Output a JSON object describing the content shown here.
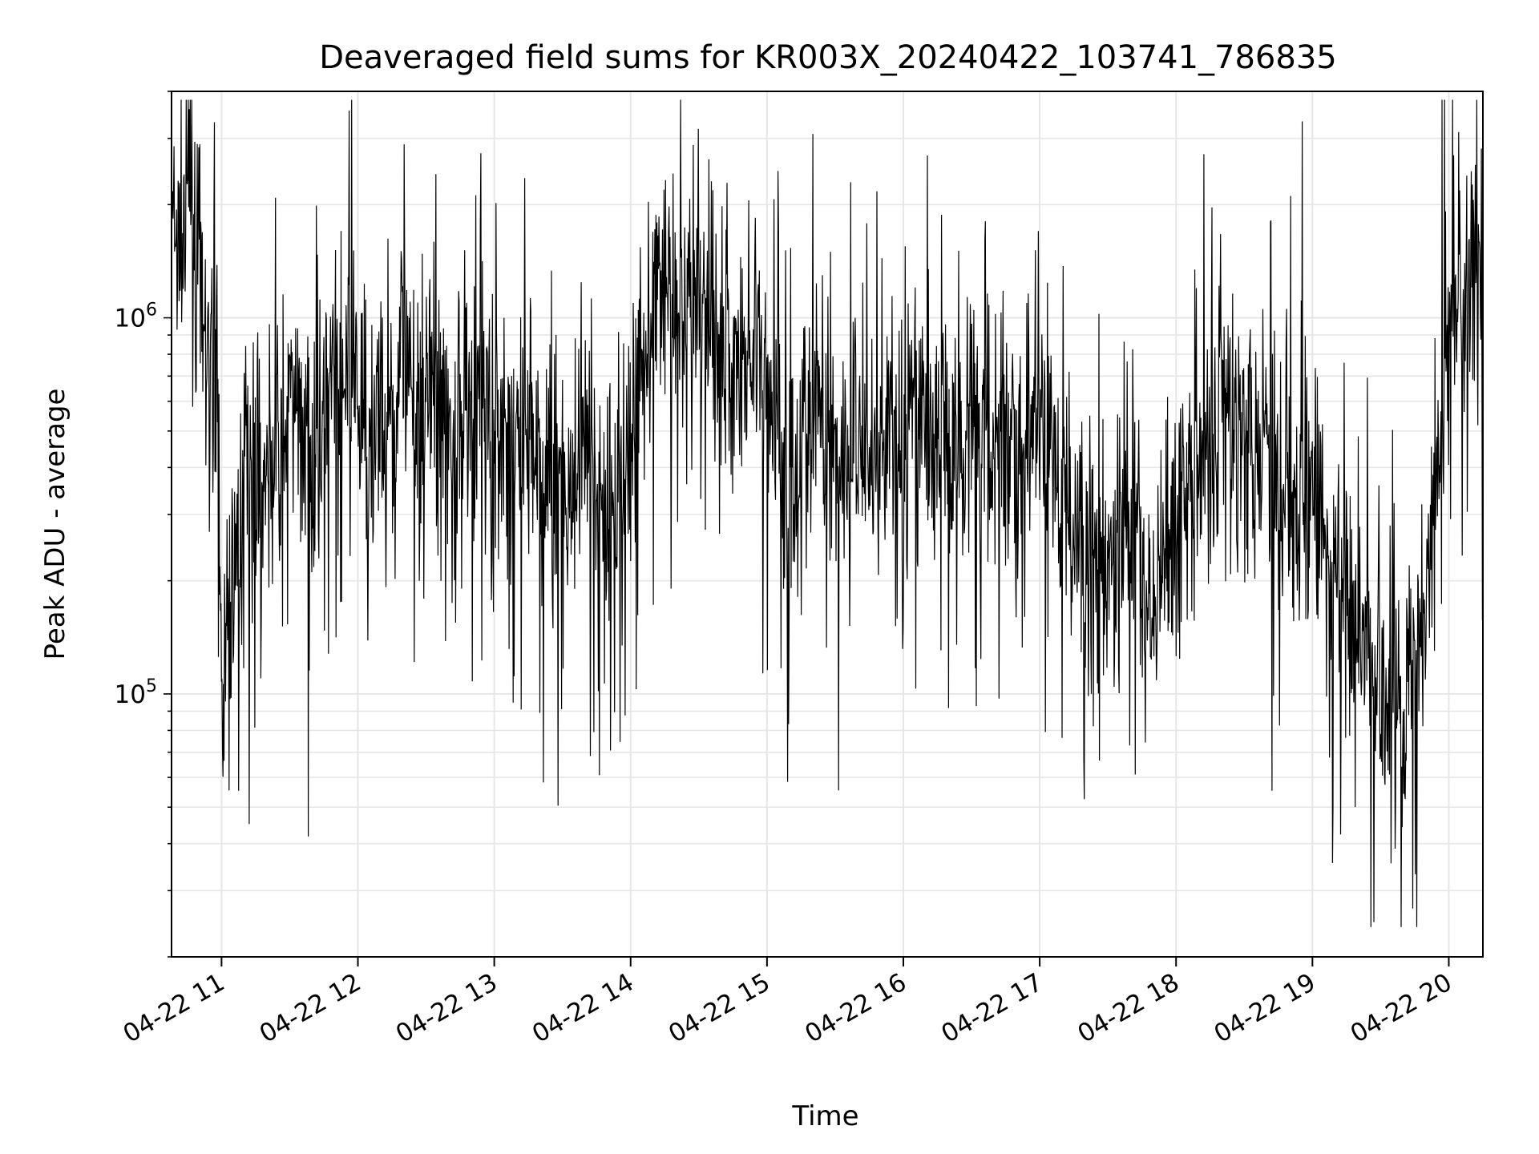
{
  "chart_data": {
    "type": "line",
    "title": "Deaveraged field sums for KR003X_20240422_103741_786835",
    "xlabel": "Time",
    "ylabel": "Peak ADU - average",
    "x_range": [
      "2024-04-22T10:38:00",
      "2024-04-22T20:15:00"
    ],
    "ylim": [
      20000,
      4000000
    ],
    "y_scale": "log",
    "grid": {
      "major": true,
      "minor_y": true
    },
    "line_color": "#000000",
    "x_ticks": [
      {
        "value": "2024-04-22T11:00",
        "label": "04-22 11"
      },
      {
        "value": "2024-04-22T12:00",
        "label": "04-22 12"
      },
      {
        "value": "2024-04-22T13:00",
        "label": "04-22 13"
      },
      {
        "value": "2024-04-22T14:00",
        "label": "04-22 14"
      },
      {
        "value": "2024-04-22T15:00",
        "label": "04-22 15"
      },
      {
        "value": "2024-04-22T16:00",
        "label": "04-22 16"
      },
      {
        "value": "2024-04-22T17:00",
        "label": "04-22 17"
      },
      {
        "value": "2024-04-22T18:00",
        "label": "04-22 18"
      },
      {
        "value": "2024-04-22T19:00",
        "label": "04-22 19"
      },
      {
        "value": "2024-04-22T20:00",
        "label": "04-22 20"
      }
    ],
    "y_ticks": [
      {
        "value": 100000,
        "base": "10",
        "exp": "5"
      },
      {
        "value": 1000000,
        "base": "10",
        "exp": "6"
      }
    ],
    "series": [
      {
        "x": [
          "10:38",
          "10:42",
          "10:46",
          "10:50",
          "10:54",
          "10:58",
          "11:00",
          "11:10",
          "11:20",
          "11:30",
          "11:40",
          "11:50",
          "12:00",
          "12:10",
          "12:20",
          "12:30",
          "12:40",
          "12:50",
          "13:00",
          "13:08",
          "13:16",
          "13:24",
          "13:32",
          "13:40",
          "13:50",
          "14:00",
          "14:08",
          "14:16",
          "14:24",
          "14:32",
          "14:40",
          "14:48",
          "14:54",
          "15:00",
          "15:10",
          "15:20",
          "15:30",
          "15:40",
          "15:50",
          "16:00",
          "16:10",
          "16:20",
          "16:30",
          "16:40",
          "16:50",
          "17:00",
          "17:10",
          "17:20",
          "17:30",
          "17:40",
          "17:50",
          "18:00",
          "18:10",
          "18:20",
          "18:30",
          "18:40",
          "18:50",
          "19:00",
          "19:10",
          "19:20",
          "19:30",
          "19:40",
          "19:50",
          "20:00",
          "20:08",
          "20:15"
        ],
        "y": [
          1700000,
          1500000,
          2200000,
          1300000,
          700000,
          600000,
          110000,
          350000,
          400000,
          550000,
          450000,
          650000,
          600000,
          500000,
          600000,
          650000,
          550000,
          600000,
          500000,
          450000,
          550000,
          400000,
          350000,
          450000,
          300000,
          500000,
          1000000,
          1400000,
          900000,
          1200000,
          800000,
          700000,
          900000,
          600000,
          350000,
          500000,
          450000,
          400000,
          500000,
          450000,
          550000,
          450000,
          550000,
          500000,
          450000,
          550000,
          350000,
          250000,
          200000,
          250000,
          180000,
          300000,
          400000,
          600000,
          500000,
          450000,
          400000,
          300000,
          200000,
          150000,
          110000,
          90000,
          150000,
          1000000,
          1200000,
          1100000
        ]
      }
    ],
    "noise_seed": 7
  }
}
